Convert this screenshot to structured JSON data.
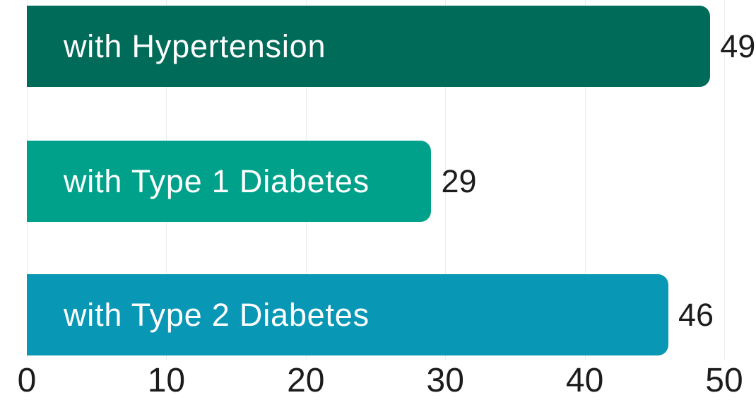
{
  "chart_data": {
    "type": "bar",
    "orientation": "horizontal",
    "title": "",
    "categories": [
      "with Hypertension",
      "with Type 1 Diabetes",
      "with Type 2 Diabetes"
    ],
    "values": [
      49,
      29,
      46
    ],
    "bar_colors": [
      "#006B58",
      "#00A18A",
      "#0897B4"
    ],
    "xlim": [
      0,
      50
    ],
    "xticks": [
      0,
      10,
      20,
      30,
      40,
      50
    ],
    "grid": "vertical-gridlines-only",
    "legend": "none",
    "colors": {
      "background": "#FFFFFF",
      "gridline": "#ECECEC",
      "bar_label_text": "#FFFFFF",
      "value_text": "#1C1C1C",
      "tick_text": "#1C1C1C"
    }
  }
}
